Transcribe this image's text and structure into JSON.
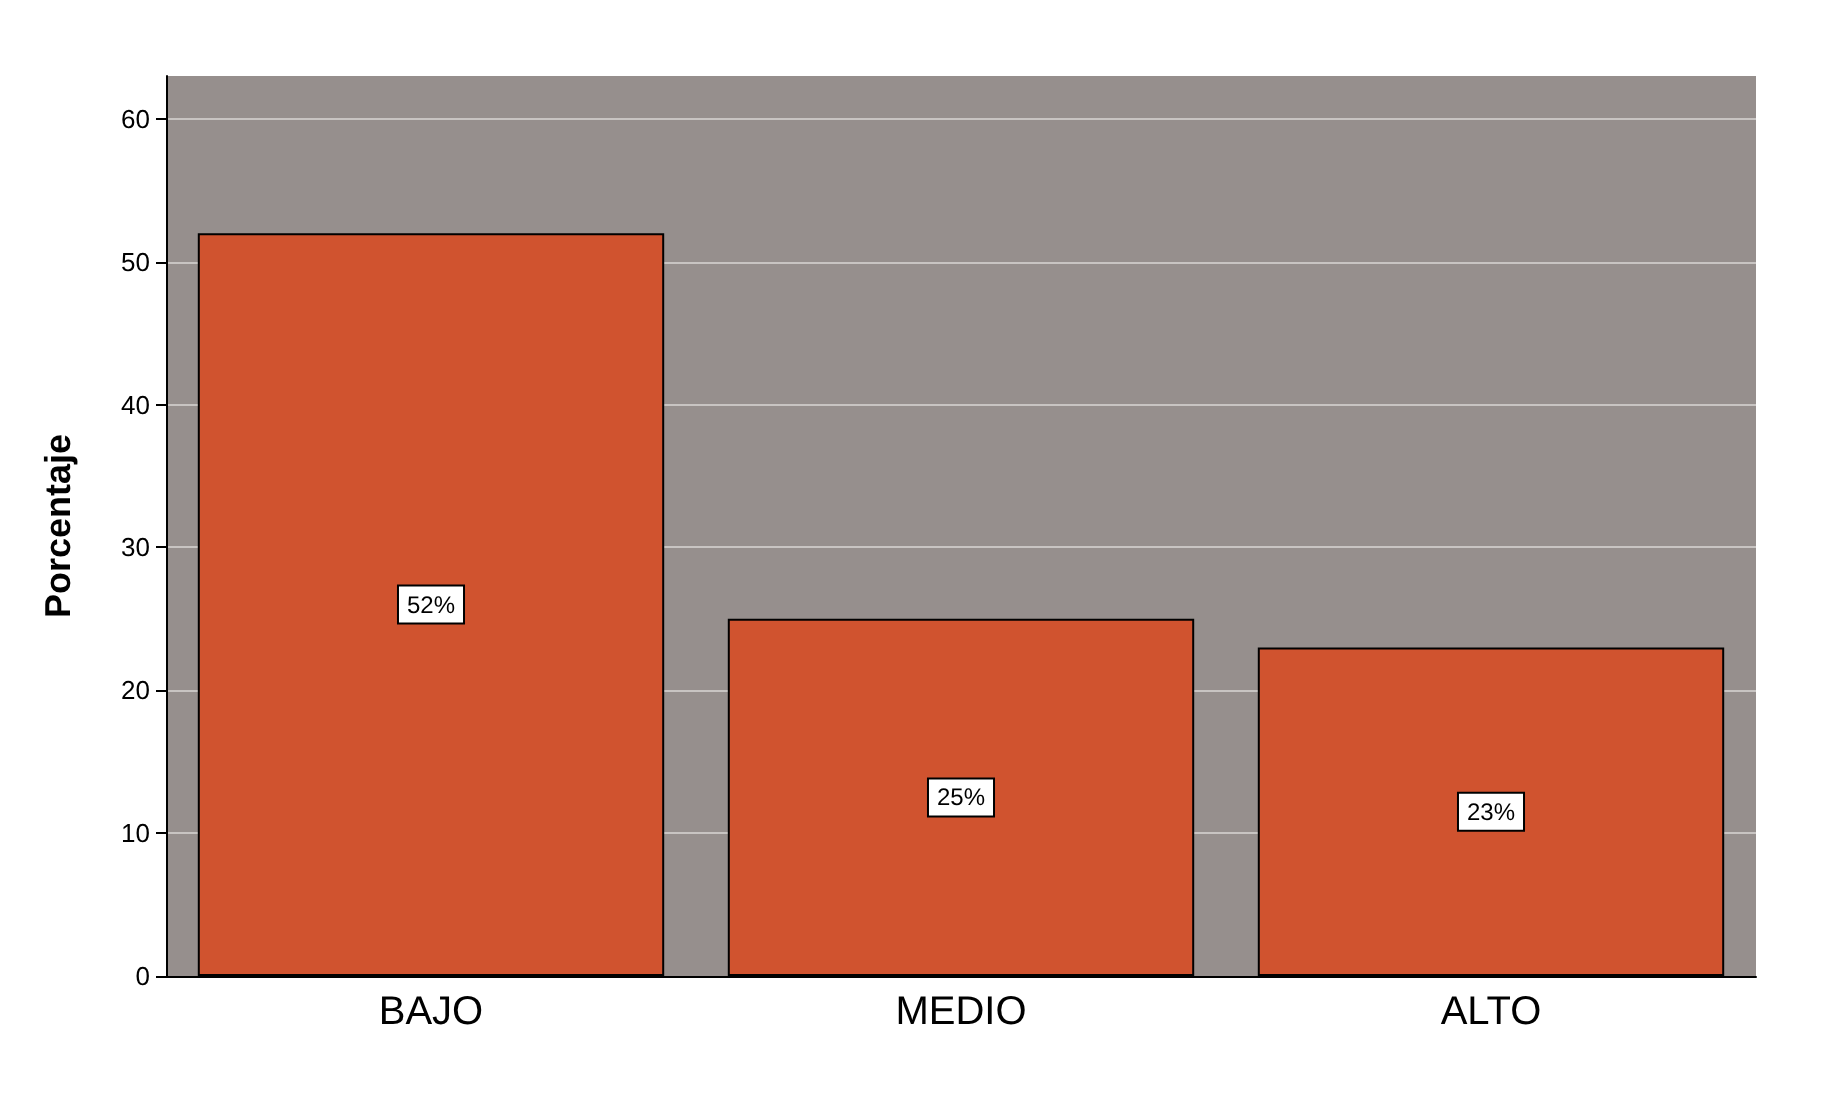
{
  "chart_data": {
    "type": "bar",
    "ylabel": "Porcentaje",
    "categories": [
      "BAJO",
      "MEDIO",
      "ALTO"
    ],
    "values": [
      52,
      25,
      23
    ],
    "value_labels": [
      "52%",
      "25%",
      "23%"
    ],
    "color": "#d0532f",
    "ylim": [
      0,
      63
    ],
    "yticks": [
      0,
      10,
      20,
      30,
      40,
      50,
      60
    ],
    "grid": "y"
  }
}
